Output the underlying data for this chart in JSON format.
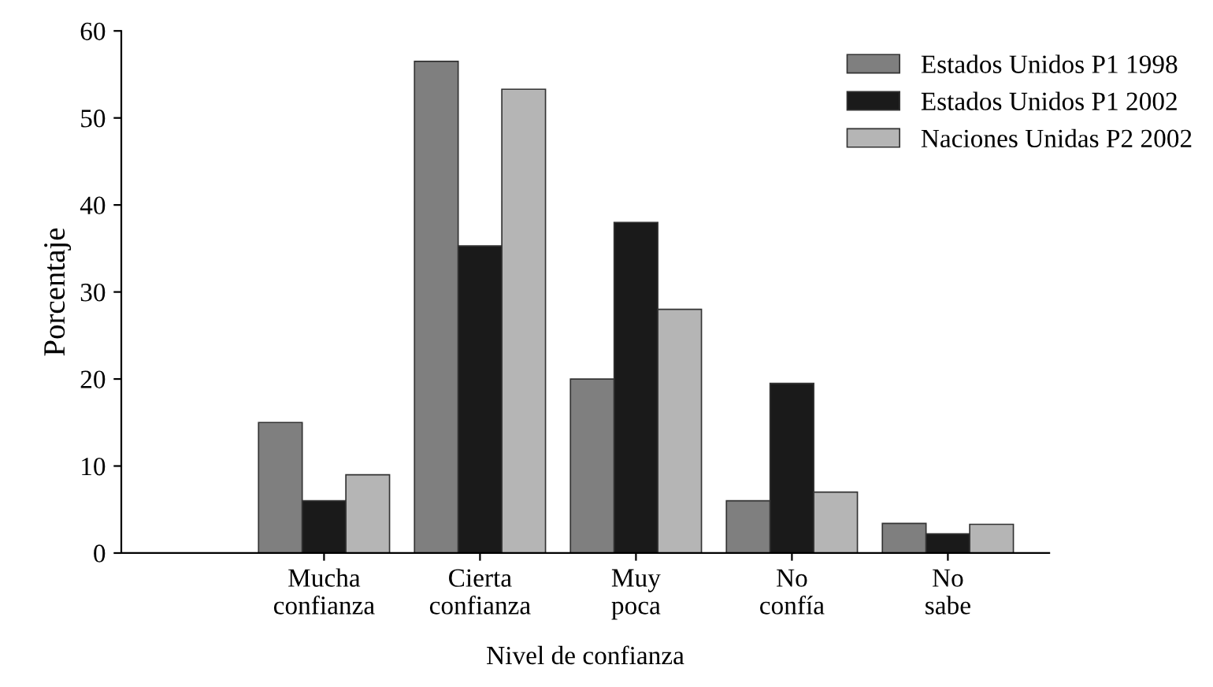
{
  "chart_data": {
    "type": "bar",
    "xlabel": "Nivel de confianza",
    "ylabel": "Porcentaje",
    "categories": [
      "Mucha\nconfianza",
      "Cierta\nconfianza",
      "Muy\npoca",
      "No\nconfía",
      "No\nsabe"
    ],
    "series": [
      {
        "name": "Estados Unidos P1 1998",
        "color": "#7f7f7f",
        "values": [
          15,
          56.5,
          20,
          6,
          3.4
        ]
      },
      {
        "name": "Estados Unidos P1 2002",
        "color": "#1a1a1a",
        "values": [
          6,
          35.3,
          38,
          19.5,
          2.2
        ]
      },
      {
        "name": "Naciones Unidas P2 2002",
        "color": "#b5b5b5",
        "values": [
          9,
          53.3,
          28,
          7,
          3.3
        ]
      }
    ],
    "ylim": [
      0,
      60
    ],
    "yticks": [
      0,
      10,
      20,
      30,
      40,
      50,
      60
    ],
    "grid": false,
    "legend": "top right"
  }
}
